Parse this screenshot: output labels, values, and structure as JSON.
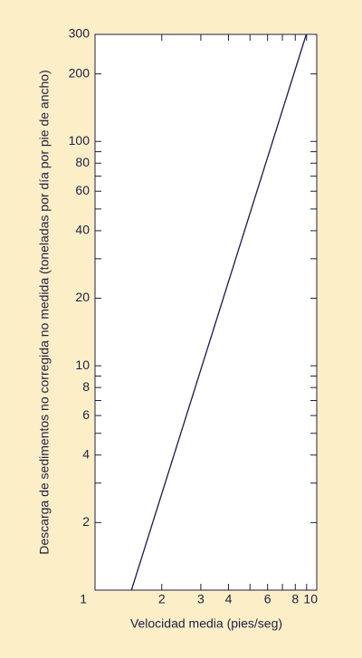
{
  "chart_data": {
    "type": "line",
    "x_label": "Velocidad media (pies/seg)",
    "y_label": "Descarga de sedimentos no corregida no medida (toneladas por día por pie de ancho)",
    "log_x": true,
    "log_y": true,
    "xlim": [
      1,
      10
    ],
    "ylim": [
      1,
      300
    ],
    "xticks": [
      1,
      2,
      3,
      4,
      6,
      8,
      10
    ],
    "xminorticks": [
      5,
      7,
      9
    ],
    "yticks": [
      2,
      4,
      6,
      8,
      10,
      20,
      40,
      60,
      80,
      100,
      200,
      300
    ],
    "yminorticks": [
      3,
      5,
      7,
      9,
      30,
      50,
      70,
      90
    ],
    "x": [
      1.46,
      8.97
    ],
    "series": [
      {
        "color": "#1a1a4a",
        "values": [
          1,
          300
        ]
      }
    ]
  }
}
